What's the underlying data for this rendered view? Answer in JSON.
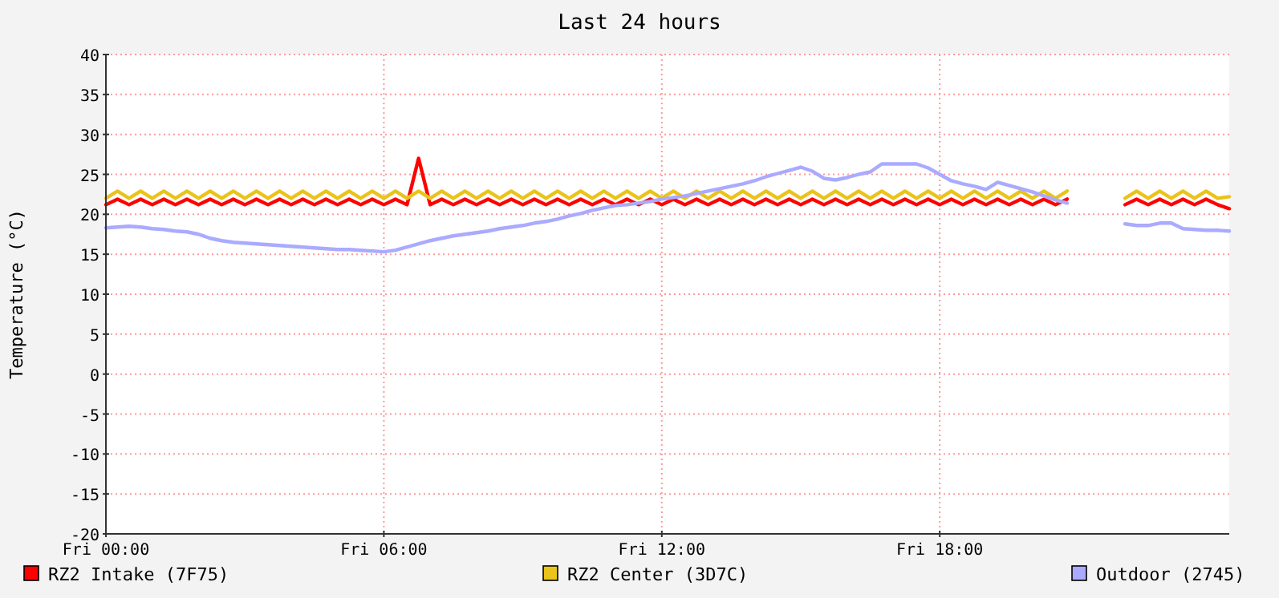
{
  "chart_data": {
    "type": "line",
    "title": "Last 24 hours",
    "ylabel": "Temperature (°C)",
    "categories": [
      "Fri 00:00",
      null,
      null,
      null,
      null,
      null,
      null,
      null,
      null,
      null,
      null,
      null,
      null,
      null,
      null,
      null,
      null,
      null,
      null,
      null,
      null,
      null,
      null,
      null,
      "Fri 06:00",
      null,
      null,
      null,
      null,
      null,
      null,
      null,
      null,
      null,
      null,
      null,
      null,
      null,
      null,
      null,
      null,
      null,
      null,
      null,
      null,
      null,
      null,
      null,
      "Fri 12:00",
      null,
      null,
      null,
      null,
      null,
      null,
      null,
      null,
      null,
      null,
      null,
      null,
      null,
      null,
      null,
      null,
      null,
      null,
      null,
      null,
      null,
      null,
      null,
      "Fri 18:00",
      null,
      null,
      null,
      null,
      null,
      null,
      null,
      null,
      null,
      null,
      null,
      null,
      null,
      null,
      null,
      null,
      null,
      null,
      null,
      null,
      null,
      null,
      null,
      null,
      null
    ],
    "series": [
      {
        "name": "RZ2 Intake (7F75)",
        "color": "#ff0000",
        "values": [
          21.2,
          21.9,
          21.2,
          21.9,
          21.2,
          21.9,
          21.2,
          21.9,
          21.2,
          21.9,
          21.2,
          21.9,
          21.2,
          21.9,
          21.2,
          21.9,
          21.2,
          21.9,
          21.2,
          21.9,
          21.2,
          21.9,
          21.2,
          21.9,
          21.2,
          21.9,
          21.2,
          27,
          21.2,
          21.9,
          21.2,
          21.9,
          21.2,
          21.9,
          21.2,
          21.9,
          21.2,
          21.9,
          21.2,
          21.9,
          21.2,
          21.9,
          21.2,
          21.9,
          21.2,
          21.9,
          21.2,
          21.9,
          21.2,
          21.9,
          21.2,
          21.9,
          21.2,
          21.9,
          21.2,
          21.9,
          21.2,
          21.9,
          21.2,
          21.9,
          21.2,
          21.9,
          21.2,
          21.9,
          21.2,
          21.9,
          21.2,
          21.9,
          21.2,
          21.9,
          21.2,
          21.9,
          21.2,
          21.9,
          21.2,
          21.9,
          21.2,
          21.9,
          21.2,
          21.9,
          21.2,
          21.9,
          21.2,
          21.9,
          null,
          null,
          null,
          null,
          21.2,
          21.9,
          21.2,
          21.9,
          21.2,
          21.9,
          21.2,
          21.9,
          21.2,
          20.7
        ]
      },
      {
        "name": "RZ2 Center (3D7C)",
        "color": "#eac31b",
        "values": [
          22,
          22.9,
          22,
          22.9,
          22,
          22.9,
          22,
          22.9,
          22,
          22.9,
          22,
          22.9,
          22,
          22.9,
          22,
          22.9,
          22,
          22.9,
          22,
          22.9,
          22,
          22.9,
          22,
          22.9,
          22,
          22.9,
          22,
          22.9,
          22,
          22.9,
          22,
          22.9,
          22,
          22.9,
          22,
          22.9,
          22,
          22.9,
          22,
          22.9,
          22,
          22.9,
          22,
          22.9,
          22,
          22.9,
          22,
          22.9,
          22,
          22.9,
          22,
          22.9,
          22,
          22.9,
          22,
          22.9,
          22,
          22.9,
          22,
          22.9,
          22,
          22.9,
          22,
          22.9,
          22,
          22.9,
          22,
          22.9,
          22,
          22.9,
          22,
          22.9,
          22,
          22.9,
          22,
          22.9,
          22,
          22.9,
          22,
          22.9,
          22,
          22.9,
          22,
          22.9,
          null,
          null,
          null,
          null,
          22,
          22.9,
          22,
          22.9,
          22,
          22.9,
          22,
          22.9,
          22,
          22.2
        ]
      },
      {
        "name": "Outdoor (2745)",
        "color": "#aaaaff",
        "values": [
          18.3,
          18.4,
          18.5,
          18.4,
          18.2,
          18.1,
          17.9,
          17.8,
          17.5,
          17,
          16.7,
          16.5,
          16.4,
          16.3,
          16.2,
          16.1,
          16,
          15.9,
          15.8,
          15.7,
          15.6,
          15.6,
          15.5,
          15.4,
          15.3,
          15.5,
          15.9,
          16.3,
          16.7,
          17,
          17.3,
          17.5,
          17.7,
          17.9,
          18.2,
          18.4,
          18.6,
          18.9,
          19.1,
          19.4,
          19.8,
          20.1,
          20.5,
          20.8,
          21.1,
          21.2,
          21.4,
          21.6,
          21.9,
          22.1,
          22.3,
          22.6,
          22.9,
          23.2,
          23.5,
          23.8,
          24.2,
          24.7,
          25.1,
          25.5,
          25.9,
          25.4,
          24.5,
          24.3,
          24.6,
          25,
          25.3,
          26.3,
          26.3,
          26.3,
          26.3,
          25.8,
          25,
          24.2,
          23.8,
          23.5,
          23.1,
          24,
          23.6,
          23.2,
          22.8,
          22.3,
          21.8,
          21.4,
          null,
          null,
          null,
          null,
          18.8,
          18.6,
          18.6,
          18.9,
          18.9,
          18.2,
          18.1,
          18,
          18,
          17.9
        ]
      }
    ],
    "ylim": [
      -20,
      40
    ],
    "yticks": [
      -20,
      -15,
      -10,
      -5,
      0,
      5,
      10,
      15,
      20,
      25,
      30,
      35,
      40
    ],
    "grid": true,
    "legend": "bottom",
    "line_style": "solid",
    "marker": "none"
  }
}
